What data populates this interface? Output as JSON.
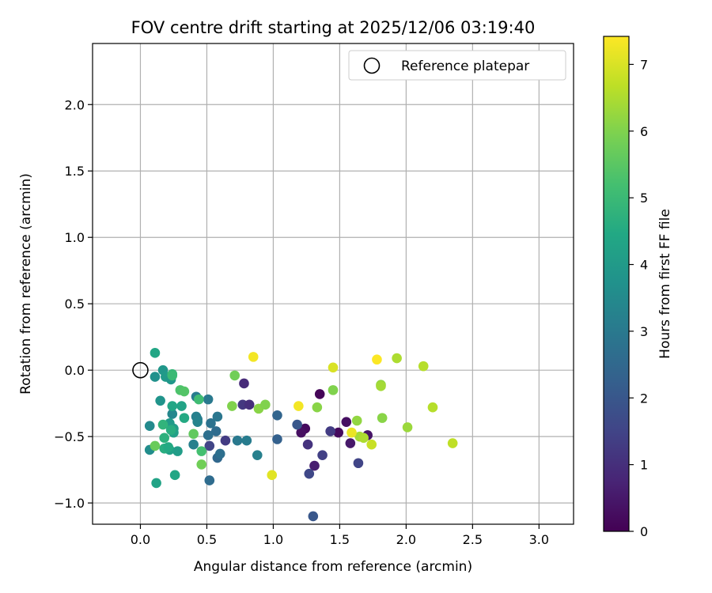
{
  "chart_data": {
    "type": "scatter",
    "title": "FOV centre drift starting at 2025/12/06 03:19:40",
    "xlabel": "Angular distance from reference (arcmin)",
    "ylabel": "Rotation from reference (arcmin)",
    "colorbar_label": "Hours from first FF file",
    "xlim": [
      -0.36,
      3.26
    ],
    "ylim": [
      -1.16,
      2.46
    ],
    "xticks": [
      0.0,
      0.5,
      1.0,
      1.5,
      2.0,
      2.5,
      3.0
    ],
    "yticks": [
      -1.0,
      -0.5,
      0.0,
      0.5,
      1.0,
      1.5,
      2.0
    ],
    "xtick_labels": [
      "0.0",
      "0.5",
      "1.0",
      "1.5",
      "2.0",
      "2.5",
      "3.0"
    ],
    "ytick_labels": [
      "−1.0",
      "−0.5",
      "0.0",
      "0.5",
      "1.0",
      "1.5",
      "2.0"
    ],
    "colorbar_range": [
      0,
      7.42
    ],
    "colorbar_ticks": [
      0,
      1,
      2,
      3,
      4,
      5,
      6,
      7
    ],
    "colorbar_tick_labels": [
      "0",
      "1",
      "2",
      "3",
      "4",
      "5",
      "6",
      "7"
    ],
    "grid": true,
    "legend": {
      "location": "top-right",
      "entries": [
        "Reference platepar"
      ]
    },
    "reference_point": {
      "x": 0.0,
      "y": 0.0
    },
    "points": [
      {
        "x": 1.35,
        "y": -0.18,
        "hours": 0.1
      },
      {
        "x": 1.24,
        "y": -0.44,
        "hours": 0.2
      },
      {
        "x": 1.21,
        "y": -0.47,
        "hours": 0.3
      },
      {
        "x": 1.55,
        "y": -0.39,
        "hours": 0.3
      },
      {
        "x": 1.49,
        "y": -0.47,
        "hours": 0.2
      },
      {
        "x": 1.71,
        "y": -0.49,
        "hours": 0.4
      },
      {
        "x": 1.58,
        "y": -0.55,
        "hours": 0.5
      },
      {
        "x": 1.31,
        "y": -0.72,
        "hours": 0.6
      },
      {
        "x": 0.78,
        "y": -0.1,
        "hours": 0.9
      },
      {
        "x": 0.77,
        "y": -0.26,
        "hours": 1.2
      },
      {
        "x": 0.82,
        "y": -0.26,
        "hours": 1.0
      },
      {
        "x": 1.26,
        "y": -0.56,
        "hours": 1.1
      },
      {
        "x": 1.43,
        "y": -0.46,
        "hours": 1.3
      },
      {
        "x": 1.37,
        "y": -0.64,
        "hours": 1.4
      },
      {
        "x": 1.27,
        "y": -0.78,
        "hours": 1.6
      },
      {
        "x": 1.64,
        "y": -0.7,
        "hours": 1.5
      },
      {
        "x": 0.64,
        "y": -0.53,
        "hours": 1.3
      },
      {
        "x": 0.52,
        "y": -0.57,
        "hours": 1.5
      },
      {
        "x": 1.3,
        "y": -1.1,
        "hours": 2.0
      },
      {
        "x": 1.18,
        "y": -0.41,
        "hours": 2.0
      },
      {
        "x": 1.03,
        "y": -0.52,
        "hours": 2.3
      },
      {
        "x": 1.03,
        "y": -0.34,
        "hours": 2.4
      },
      {
        "x": 0.52,
        "y": -0.83,
        "hours": 2.6
      },
      {
        "x": 0.58,
        "y": -0.66,
        "hours": 2.5
      },
      {
        "x": 0.6,
        "y": -0.63,
        "hours": 2.7
      },
      {
        "x": 0.57,
        "y": -0.46,
        "hours": 2.6
      },
      {
        "x": 0.51,
        "y": -0.49,
        "hours": 2.7
      },
      {
        "x": 0.53,
        "y": -0.4,
        "hours": 2.8
      },
      {
        "x": 0.58,
        "y": -0.35,
        "hours": 2.9
      },
      {
        "x": 0.51,
        "y": -0.22,
        "hours": 3.0
      },
      {
        "x": 0.42,
        "y": -0.2,
        "hours": 3.1
      },
      {
        "x": 0.43,
        "y": -0.37,
        "hours": 3.0
      },
      {
        "x": 0.42,
        "y": -0.35,
        "hours": 3.2
      },
      {
        "x": 0.43,
        "y": -0.39,
        "hours": 3.3
      },
      {
        "x": 0.4,
        "y": -0.56,
        "hours": 3.2
      },
      {
        "x": 0.73,
        "y": -0.53,
        "hours": 3.0
      },
      {
        "x": 0.8,
        "y": -0.53,
        "hours": 3.1
      },
      {
        "x": 0.88,
        "y": -0.64,
        "hours": 3.2
      },
      {
        "x": 0.24,
        "y": -0.33,
        "hours": 3.4
      },
      {
        "x": 0.07,
        "y": -0.42,
        "hours": 3.5
      },
      {
        "x": 0.07,
        "y": -0.6,
        "hours": 3.6
      },
      {
        "x": 0.11,
        "y": -0.05,
        "hours": 3.7
      },
      {
        "x": 0.15,
        "y": -0.23,
        "hours": 3.8
      },
      {
        "x": 0.17,
        "y": 0.0,
        "hours": 3.9
      },
      {
        "x": 0.19,
        "y": -0.05,
        "hours": 4.0
      },
      {
        "x": 0.23,
        "y": -0.07,
        "hours": 3.9
      },
      {
        "x": 0.22,
        "y": -0.4,
        "hours": 4.0
      },
      {
        "x": 0.25,
        "y": -0.44,
        "hours": 4.1
      },
      {
        "x": 0.25,
        "y": -0.47,
        "hours": 4.2
      },
      {
        "x": 0.28,
        "y": -0.61,
        "hours": 4.1
      },
      {
        "x": 0.22,
        "y": -0.6,
        "hours": 4.2
      },
      {
        "x": 0.12,
        "y": -0.85,
        "hours": 4.3
      },
      {
        "x": 0.11,
        "y": 0.13,
        "hours": 4.4
      },
      {
        "x": 0.24,
        "y": -0.27,
        "hours": 4.4
      },
      {
        "x": 0.31,
        "y": -0.27,
        "hours": 4.3
      },
      {
        "x": 0.33,
        "y": -0.36,
        "hours": 4.5
      },
      {
        "x": 0.18,
        "y": -0.59,
        "hours": 4.6
      },
      {
        "x": 0.21,
        "y": -0.58,
        "hours": 4.5
      },
      {
        "x": 0.26,
        "y": -0.79,
        "hours": 4.4
      },
      {
        "x": 0.18,
        "y": -0.51,
        "hours": 4.7
      },
      {
        "x": 0.17,
        "y": -0.41,
        "hours": 4.8
      },
      {
        "x": 0.23,
        "y": -0.45,
        "hours": 4.6
      },
      {
        "x": 0.24,
        "y": -0.03,
        "hours": 4.9
      },
      {
        "x": 0.24,
        "y": -0.04,
        "hours": 5.0
      },
      {
        "x": 0.44,
        "y": -0.22,
        "hours": 5.1
      },
      {
        "x": 0.3,
        "y": -0.15,
        "hours": 5.3
      },
      {
        "x": 0.33,
        "y": -0.16,
        "hours": 5.4
      },
      {
        "x": 0.46,
        "y": -0.61,
        "hours": 5.2
      },
      {
        "x": 0.4,
        "y": -0.48,
        "hours": 5.6
      },
      {
        "x": 0.11,
        "y": -0.57,
        "hours": 5.7
      },
      {
        "x": 0.46,
        "y": -0.71,
        "hours": 5.8
      },
      {
        "x": 0.71,
        "y": -0.04,
        "hours": 5.8
      },
      {
        "x": 0.69,
        "y": -0.27,
        "hours": 6.0
      },
      {
        "x": 0.89,
        "y": -0.29,
        "hours": 6.1
      },
      {
        "x": 0.94,
        "y": -0.26,
        "hours": 6.0
      },
      {
        "x": 1.45,
        "y": -0.15,
        "hours": 6.0
      },
      {
        "x": 1.33,
        "y": -0.28,
        "hours": 6.1
      },
      {
        "x": 1.63,
        "y": -0.38,
        "hours": 6.2
      },
      {
        "x": 1.82,
        "y": -0.36,
        "hours": 6.1
      },
      {
        "x": 2.01,
        "y": -0.43,
        "hours": 6.3
      },
      {
        "x": 1.81,
        "y": -0.11,
        "hours": 6.2
      },
      {
        "x": 1.81,
        "y": -0.12,
        "hours": 6.4
      },
      {
        "x": 1.65,
        "y": -0.5,
        "hours": 6.4
      },
      {
        "x": 1.68,
        "y": -0.51,
        "hours": 6.5
      },
      {
        "x": 1.93,
        "y": 0.09,
        "hours": 6.5
      },
      {
        "x": 2.13,
        "y": 0.03,
        "hours": 6.6
      },
      {
        "x": 2.2,
        "y": -0.28,
        "hours": 6.6
      },
      {
        "x": 2.35,
        "y": -0.55,
        "hours": 6.7
      },
      {
        "x": 1.74,
        "y": -0.56,
        "hours": 6.8
      },
      {
        "x": 1.45,
        "y": 0.02,
        "hours": 7.0
      },
      {
        "x": 0.99,
        "y": -0.79,
        "hours": 7.1
      },
      {
        "x": 1.59,
        "y": -0.47,
        "hours": 7.2
      },
      {
        "x": 1.19,
        "y": -0.27,
        "hours": 7.3
      },
      {
        "x": 0.85,
        "y": 0.1,
        "hours": 7.3
      },
      {
        "x": 1.78,
        "y": 0.08,
        "hours": 7.4
      }
    ]
  },
  "colors": {
    "reference_marker": "#000000",
    "grid": "#b0b0b0",
    "axes": "#000000",
    "legend_border": "#cccccc"
  }
}
